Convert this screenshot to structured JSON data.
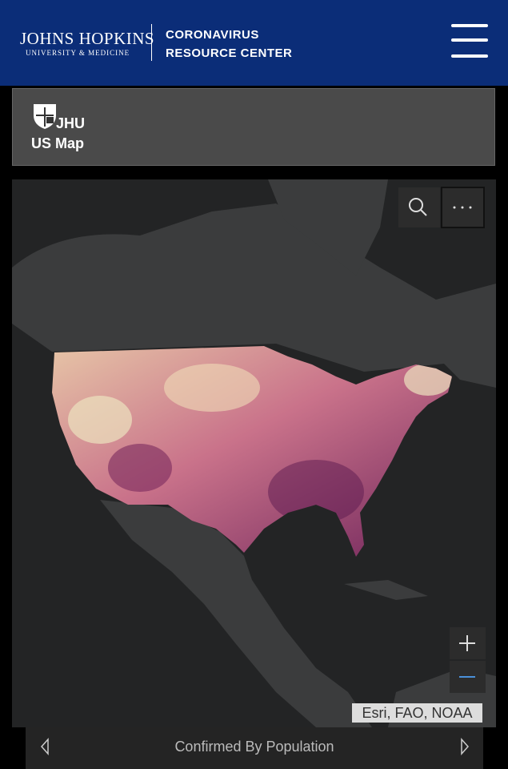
{
  "header": {
    "logo_name": "JOHNS HOPKINS",
    "logo_subtitle": "UNIVERSITY & MEDICINE",
    "title_line1": "CORONAVIRUS",
    "title_line2": "RESOURCE CENTER"
  },
  "panel": {
    "org": "JHU",
    "title": "US Map"
  },
  "map": {
    "attribution": "Esri, FAO, NOAA"
  },
  "footer": {
    "layer_name": "Confirmed By Population"
  }
}
